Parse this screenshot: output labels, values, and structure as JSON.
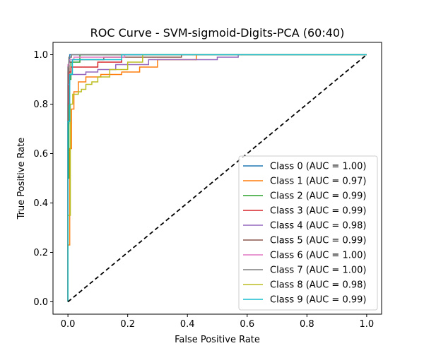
{
  "chart_data": {
    "type": "line",
    "title": "ROC Curve - SVM-sigmoid-Digits-PCA (60:40)",
    "xlabel": "False Positive Rate",
    "ylabel": "True Positive Rate",
    "xlim": [
      -0.05,
      1.05
    ],
    "ylim": [
      -0.05,
      1.05
    ],
    "xticks": [
      "0.0",
      "0.2",
      "0.4",
      "0.6",
      "0.8",
      "1.0"
    ],
    "yticks": [
      "0.0",
      "0.2",
      "0.4",
      "0.6",
      "0.8",
      "1.0"
    ],
    "grid": false,
    "legend_position": "lower-right",
    "diagonal": {
      "x": [
        0,
        1
      ],
      "y": [
        0,
        1
      ],
      "style": "dashed",
      "color": "#000000"
    },
    "series": [
      {
        "name": "Class 0 (AUC = 1.00)",
        "color": "#1f77b4",
        "x": [
          0,
          0,
          0.003,
          0.003,
          0.006,
          0.006,
          1
        ],
        "y": [
          0,
          0.72,
          0.72,
          0.97,
          0.97,
          1.0,
          1.0
        ]
      },
      {
        "name": "Class 1 (AUC = 0.97)",
        "color": "#ff7f0e",
        "x": [
          0,
          0,
          0.006,
          0.006,
          0.012,
          0.012,
          0.02,
          0.02,
          0.035,
          0.035,
          0.06,
          0.06,
          0.11,
          0.11,
          0.18,
          0.18,
          0.24,
          0.24,
          0.3,
          0.3,
          0.43,
          0.43,
          1
        ],
        "y": [
          0,
          0.23,
          0.23,
          0.62,
          0.62,
          0.78,
          0.78,
          0.85,
          0.85,
          0.89,
          0.89,
          0.91,
          0.91,
          0.92,
          0.92,
          0.93,
          0.93,
          0.95,
          0.95,
          0.98,
          0.98,
          1.0,
          1.0
        ]
      },
      {
        "name": "Class 2 (AUC = 0.99)",
        "color": "#2ca02c",
        "x": [
          0,
          0,
          0.003,
          0.003,
          0.01,
          0.01,
          0.04,
          0.04,
          1
        ],
        "y": [
          0,
          0.5,
          0.5,
          0.9,
          0.9,
          0.97,
          0.97,
          1.0,
          1.0
        ]
      },
      {
        "name": "Class 3 (AUC = 0.99)",
        "color": "#d62728",
        "x": [
          0,
          0,
          0.004,
          0.004,
          0.01,
          0.01,
          0.03,
          0.03,
          0.1,
          0.1,
          0.18,
          0.18,
          1
        ],
        "y": [
          0,
          0.8,
          0.8,
          0.93,
          0.93,
          0.95,
          0.95,
          0.95,
          0.95,
          0.97,
          0.97,
          1.0,
          1.0
        ]
      },
      {
        "name": "Class 4 (AUC = 0.98)",
        "color": "#9467bd",
        "x": [
          0,
          0,
          0.006,
          0.006,
          0.03,
          0.03,
          0.06,
          0.06,
          0.1,
          0.1,
          0.16,
          0.16,
          0.27,
          0.27,
          0.5,
          0.5,
          0.57,
          0.57,
          1
        ],
        "y": [
          0,
          0.88,
          0.88,
          0.92,
          0.92,
          0.92,
          0.92,
          0.93,
          0.93,
          0.94,
          0.94,
          0.96,
          0.96,
          0.98,
          0.98,
          0.99,
          0.99,
          1.0,
          1.0
        ]
      },
      {
        "name": "Class 5 (AUC = 0.99)",
        "color": "#8c564b",
        "x": [
          0,
          0,
          0.004,
          0.004,
          0.015,
          0.015,
          0.12,
          0.12,
          0.38,
          0.38,
          1
        ],
        "y": [
          0,
          0.93,
          0.93,
          0.97,
          0.97,
          0.98,
          0.98,
          0.99,
          0.99,
          1.0,
          1.0
        ]
      },
      {
        "name": "Class 6 (AUC = 1.00)",
        "color": "#e377c2",
        "x": [
          0,
          0,
          0.004,
          0.004,
          0.02,
          0.02,
          0.19,
          0.19,
          1
        ],
        "y": [
          0,
          0.96,
          0.96,
          0.98,
          0.98,
          0.99,
          0.99,
          1.0,
          1.0
        ]
      },
      {
        "name": "Class 7 (AUC = 1.00)",
        "color": "#7f7f7f",
        "x": [
          0,
          0,
          0.003,
          0.003,
          0.012,
          0.012,
          1
        ],
        "y": [
          0,
          0.95,
          0.95,
          0.99,
          0.99,
          1.0,
          1.0
        ]
      },
      {
        "name": "Class 8 (AUC = 0.98)",
        "color": "#bcbd22",
        "x": [
          0,
          0,
          0.008,
          0.008,
          0.016,
          0.016,
          0.025,
          0.025,
          0.035,
          0.035,
          0.045,
          0.045,
          0.06,
          0.06,
          0.08,
          0.08,
          0.1,
          0.1,
          0.14,
          0.14,
          0.2,
          0.2,
          0.25,
          0.25,
          1
        ],
        "y": [
          0,
          0.35,
          0.35,
          0.8,
          0.8,
          0.84,
          0.84,
          0.84,
          0.84,
          0.85,
          0.85,
          0.86,
          0.86,
          0.88,
          0.88,
          0.89,
          0.89,
          0.91,
          0.91,
          0.94,
          0.94,
          0.97,
          0.97,
          1.0,
          1.0
        ]
      },
      {
        "name": "Class 9 (AUC = 0.99)",
        "color": "#17becf",
        "x": [
          0,
          0,
          0.006,
          0.006,
          0.015,
          0.015,
          0.18,
          0.18,
          1
        ],
        "y": [
          0,
          0.73,
          0.73,
          0.92,
          0.92,
          0.98,
          0.98,
          1.0,
          1.0
        ]
      }
    ]
  }
}
